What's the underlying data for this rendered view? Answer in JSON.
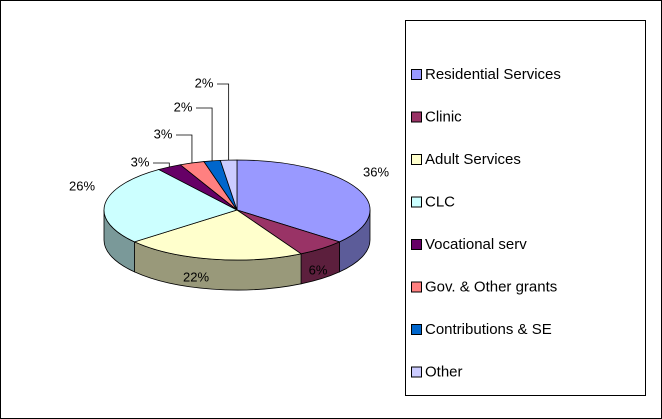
{
  "chart_data": {
    "type": "pie3d",
    "categories": [
      "Residential Services",
      "Clinic",
      "Adult Services",
      "CLC",
      "Vocational serv",
      "Gov. & Other grants",
      "Contributions & SE",
      "Other"
    ],
    "values": [
      36,
      6,
      22,
      26,
      3,
      3,
      2,
      2
    ],
    "value_labels": [
      "36%",
      "6%",
      "22%",
      "26%",
      "3%",
      "3%",
      "2%",
      "2%"
    ],
    "colors": [
      "#9999ff",
      "#993366",
      "#ffffcc",
      "#ccffff",
      "#660066",
      "#ff8080",
      "#0066cc",
      "#ccccff"
    ],
    "legend": "right"
  }
}
